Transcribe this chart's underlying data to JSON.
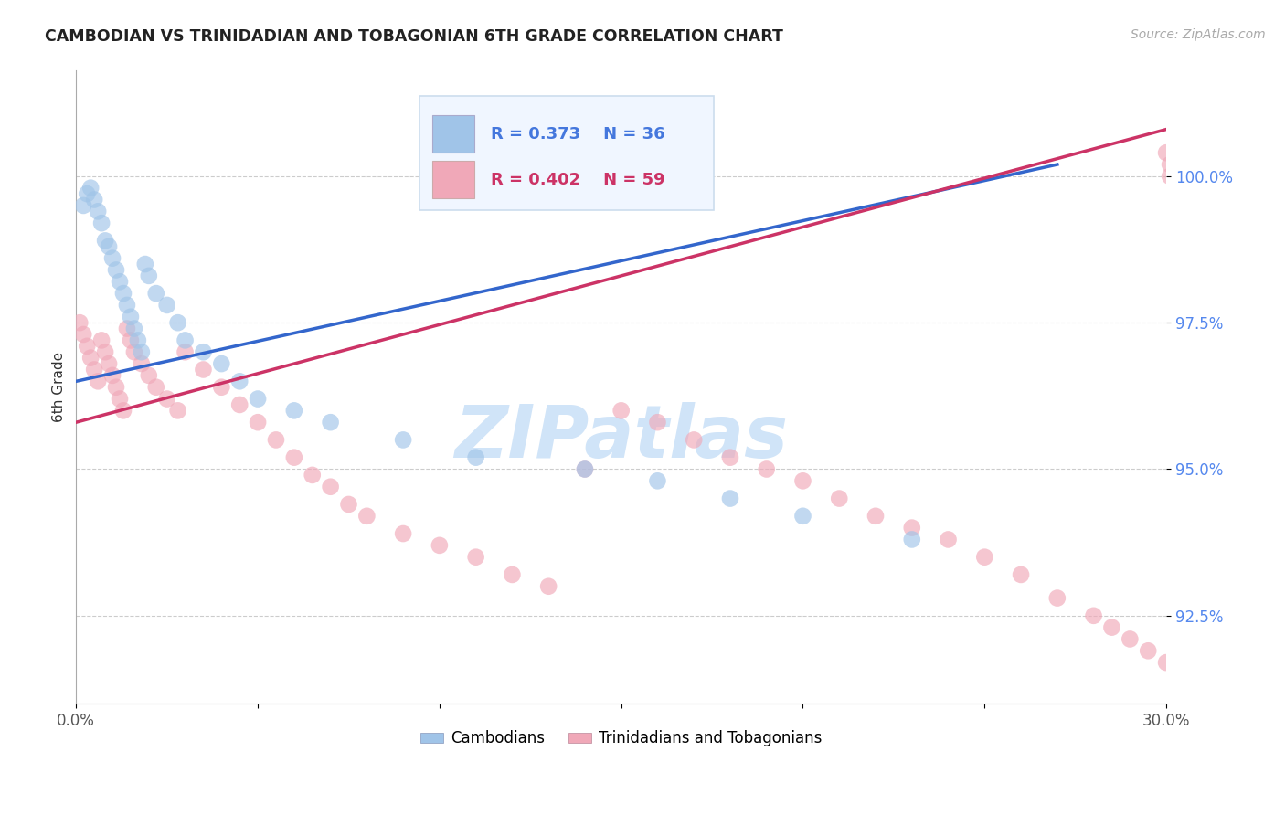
{
  "title": "CAMBODIAN VS TRINIDADIAN AND TOBAGONIAN 6TH GRADE CORRELATION CHART",
  "source_text": "Source: ZipAtlas.com",
  "ylabel": "6th Grade",
  "xlim": [
    0.0,
    30.0
  ],
  "ylim": [
    91.0,
    101.8
  ],
  "yticks": [
    92.5,
    95.0,
    97.5,
    100.0
  ],
  "xticks": [
    0.0,
    5.0,
    10.0,
    15.0,
    20.0,
    25.0,
    30.0
  ],
  "xtick_labels": [
    "0.0%",
    "",
    "",
    "",
    "",
    "",
    "30.0%"
  ],
  "blue_R": 0.373,
  "blue_N": 36,
  "pink_R": 0.402,
  "pink_N": 59,
  "blue_color": "#a0c4e8",
  "pink_color": "#f0a8b8",
  "blue_line_color": "#3366cc",
  "pink_line_color": "#cc3366",
  "legend_label_blue": "Cambodians",
  "legend_label_pink": "Trinidadians and Tobagonians",
  "watermark": "ZIPatlas",
  "watermark_color": "#d0e4f8",
  "background_color": "#ffffff",
  "blue_x": [
    0.2,
    0.3,
    0.4,
    0.5,
    0.6,
    0.7,
    0.8,
    0.9,
    1.0,
    1.1,
    1.2,
    1.3,
    1.4,
    1.5,
    1.6,
    1.7,
    1.8,
    1.9,
    2.0,
    2.2,
    2.5,
    2.8,
    3.0,
    3.5,
    4.0,
    4.5,
    5.0,
    6.0,
    7.0,
    9.0,
    11.0,
    14.0,
    16.0,
    18.0,
    20.0,
    23.0
  ],
  "blue_y": [
    99.5,
    99.7,
    99.8,
    99.6,
    99.4,
    99.2,
    98.9,
    98.8,
    98.6,
    98.4,
    98.2,
    98.0,
    97.8,
    97.6,
    97.4,
    97.2,
    97.0,
    98.5,
    98.3,
    98.0,
    97.8,
    97.5,
    97.2,
    97.0,
    96.8,
    96.5,
    96.2,
    96.0,
    95.8,
    95.5,
    95.2,
    95.0,
    94.8,
    94.5,
    94.2,
    93.8
  ],
  "pink_x": [
    0.1,
    0.2,
    0.3,
    0.4,
    0.5,
    0.6,
    0.7,
    0.8,
    0.9,
    1.0,
    1.1,
    1.2,
    1.3,
    1.4,
    1.5,
    1.6,
    1.8,
    2.0,
    2.2,
    2.5,
    2.8,
    3.0,
    3.5,
    4.0,
    4.5,
    5.0,
    5.5,
    6.0,
    6.5,
    7.0,
    7.5,
    8.0,
    9.0,
    10.0,
    11.0,
    12.0,
    13.0,
    14.0,
    15.0,
    16.0,
    17.0,
    18.0,
    19.0,
    20.0,
    21.0,
    22.0,
    23.0,
    24.0,
    25.0,
    26.0,
    27.0,
    28.0,
    28.5,
    29.0,
    29.5,
    30.0,
    30.0,
    30.1,
    30.1
  ],
  "pink_y": [
    97.5,
    97.3,
    97.1,
    96.9,
    96.7,
    96.5,
    97.2,
    97.0,
    96.8,
    96.6,
    96.4,
    96.2,
    96.0,
    97.4,
    97.2,
    97.0,
    96.8,
    96.6,
    96.4,
    96.2,
    96.0,
    97.0,
    96.7,
    96.4,
    96.1,
    95.8,
    95.5,
    95.2,
    94.9,
    94.7,
    94.4,
    94.2,
    93.9,
    93.7,
    93.5,
    93.2,
    93.0,
    95.0,
    96.0,
    95.8,
    95.5,
    95.2,
    95.0,
    94.8,
    94.5,
    94.2,
    94.0,
    93.8,
    93.5,
    93.2,
    92.8,
    92.5,
    92.3,
    92.1,
    91.9,
    91.7,
    100.4,
    100.2,
    100.0
  ],
  "blue_line_x0": 0.0,
  "blue_line_y0": 96.5,
  "blue_line_x1": 27.0,
  "blue_line_y1": 100.2,
  "pink_line_x0": 0.0,
  "pink_line_y0": 95.8,
  "pink_line_x1": 30.0,
  "pink_line_y1": 100.8
}
